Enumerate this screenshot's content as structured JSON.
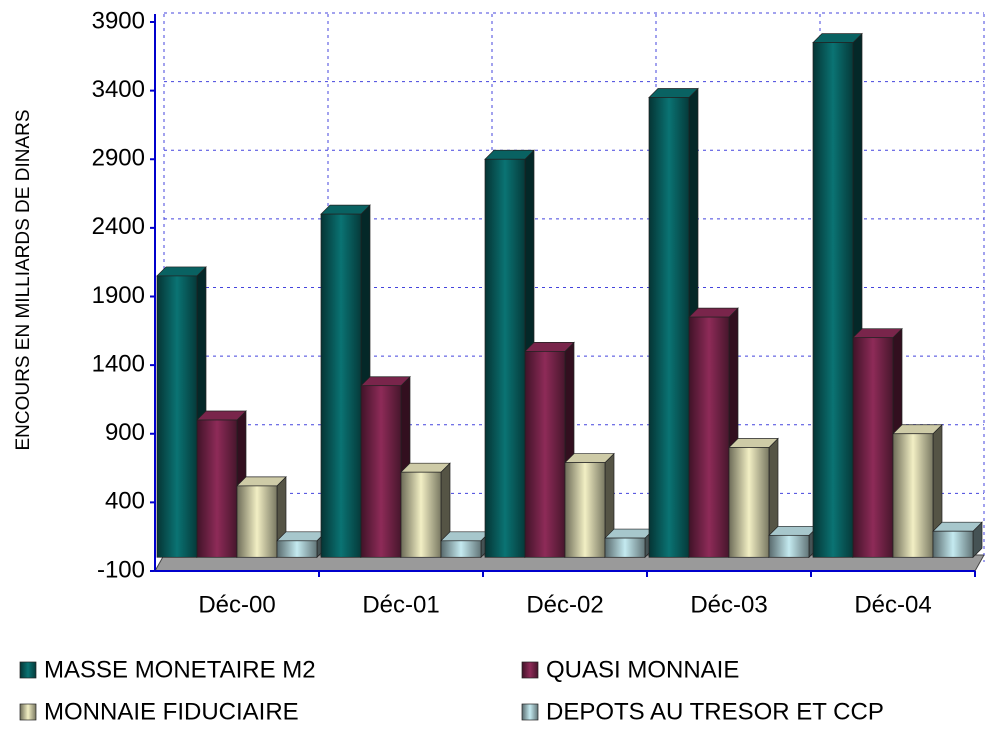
{
  "chart_data": {
    "type": "bar3d",
    "y_label": "ENCOURS EN MILLIARDS DE DINARS",
    "categories": [
      "Déc-00",
      "Déc-01",
      "Déc-02",
      "Déc-03",
      "Déc-04"
    ],
    "series": [
      {
        "name": "MASSE MONETAIRE M2",
        "color": "#0a7373",
        "values": [
          2050,
          2500,
          2900,
          3350,
          3750
        ]
      },
      {
        "name": "QUASI MONNAIE",
        "color": "#8e2b58",
        "values": [
          1000,
          1250,
          1500,
          1750,
          1600
        ]
      },
      {
        "name": "MONNAIE FIDUCIAIRE",
        "color": "#f2efc4",
        "values": [
          520,
          620,
          690,
          800,
          900
        ]
      },
      {
        "name": "DEPOTS AU TRESOR ET CCP",
        "color": "#c4eaf0",
        "values": [
          120,
          120,
          140,
          160,
          190
        ]
      }
    ],
    "ylim": [
      -100,
      3900
    ],
    "yticks": [
      -100,
      400,
      900,
      1400,
      1900,
      2400,
      2900,
      3400,
      3900
    ],
    "grid": true
  }
}
